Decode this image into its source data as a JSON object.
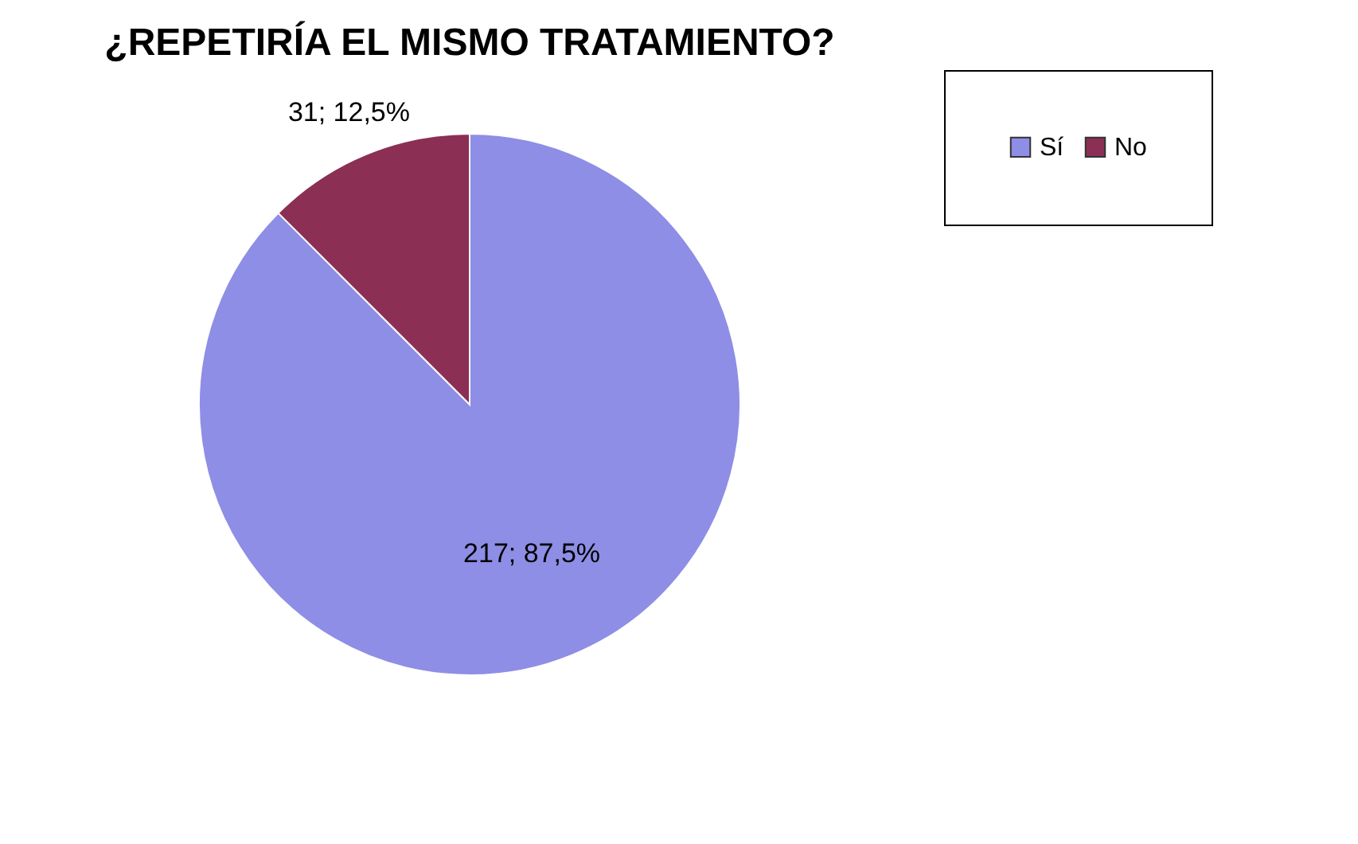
{
  "chart_data": {
    "type": "pie",
    "title": "¿REPETIRÍA EL MISMO TRATAMIENTO?",
    "categories": [
      "Sí",
      "No"
    ],
    "values": [
      217,
      31
    ],
    "colors": [
      "#8e8ee6",
      "#8b2f55"
    ],
    "value_labels": [
      "217; 87,5%",
      "31; 12,5%"
    ],
    "legend": "right"
  }
}
